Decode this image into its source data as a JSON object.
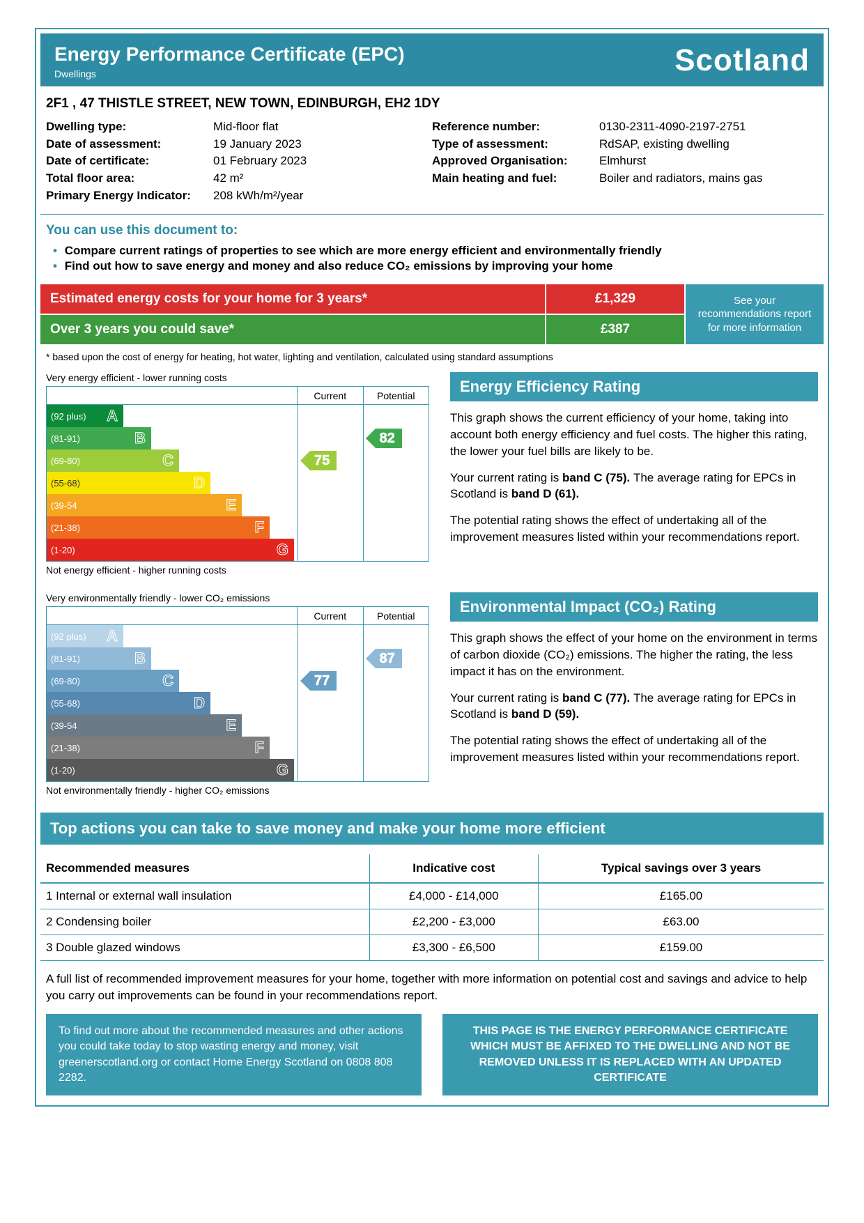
{
  "header": {
    "title": "Energy Performance Certificate (EPC)",
    "subtitle": "Dwellings",
    "region": "Scotland"
  },
  "address": "2F1 , 47 THISTLE STREET, NEW TOWN, EDINBURGH, EH2 1DY",
  "details_left": [
    {
      "label": "Dwelling type:",
      "value": "Mid-floor flat"
    },
    {
      "label": "Date of assessment:",
      "value": "19 January 2023"
    },
    {
      "label": "Date of certificate:",
      "value": "01 February 2023"
    },
    {
      "label": "Total floor area:",
      "value": "42 m²"
    },
    {
      "label": "Primary Energy Indicator:",
      "value": "208 kWh/m²/year"
    }
  ],
  "details_right": [
    {
      "label": "Reference number:",
      "value": "0130-2311-4090-2197-2751"
    },
    {
      "label": "Type of assessment:",
      "value": "RdSAP, existing dwelling"
    },
    {
      "label": "Approved Organisation:",
      "value": "Elmhurst"
    },
    {
      "label": "Main heating and fuel:",
      "value": "Boiler and radiators, mains gas"
    }
  ],
  "doc_use": {
    "title": "You can use this document to:",
    "items": [
      "Compare current ratings of properties to see which are more energy efficient and environmentally friendly",
      "Find out how to save energy and money and also reduce CO₂ emissions by improving your home"
    ]
  },
  "costs": {
    "row1_label": "Estimated energy costs for your home for 3 years*",
    "row1_value": "£1,329",
    "row2_label": "Over 3 years you could save*",
    "row2_value": "£387",
    "side": "See your recommendations report for more information",
    "footnote": "* based upon the cost of energy for heating, hot water, lighting and ventilation, calculated using standard assumptions"
  },
  "bands": {
    "labels": [
      "(92 plus)",
      "(81-91)",
      "(69-80)",
      "(55-68)",
      "(39-54",
      "(21-38)",
      "(1-20)"
    ],
    "letters": [
      "A",
      "B",
      "C",
      "D",
      "E",
      "F",
      "G"
    ],
    "widths": [
      110,
      150,
      190,
      235,
      280,
      320,
      355
    ],
    "eff_colors": [
      "#0b8a3a",
      "#3fa94f",
      "#9ccb3b",
      "#f7e500",
      "#f5a623",
      "#ef6c1f",
      "#e2261f"
    ],
    "eff_text_colors": [
      "#fff",
      "#fff",
      "#fff",
      "#333",
      "#fff",
      "#fff",
      "#fff"
    ],
    "env_colors": [
      "#b8d4e8",
      "#8fb9d6",
      "#6a9fc4",
      "#5788af",
      "#6b7a86",
      "#7d7d7d",
      "#595959"
    ]
  },
  "efficiency": {
    "title": "Energy Efficiency Rating",
    "caption_top": "Very energy efficient - lower running costs",
    "caption_bottom": "Not energy efficient - higher running costs",
    "col_current": "Current",
    "col_potential": "Potential",
    "current": {
      "value": "75",
      "band_index": 2,
      "color": "#9ccb3b"
    },
    "potential": {
      "value": "82",
      "band_index": 1,
      "color": "#3fa94f"
    },
    "p1": "This graph shows the current efficiency of your home, taking into account both energy efficiency and fuel costs. The higher this rating, the lower your fuel bills are likely to be.",
    "p2_a": "Your current rating is ",
    "p2_b": "band C (75). ",
    "p2_c": "The average rating for EPCs in Scotland is ",
    "p2_d": "band D (61).",
    "p3": "The potential rating shows the effect of undertaking all of the improvement measures listed within your recommendations report."
  },
  "environmental": {
    "title": "Environmental Impact (CO₂) Rating",
    "caption_top": "Very environmentally friendly - lower CO₂ emissions",
    "caption_bottom": "Not environmentally friendly - higher CO₂ emissions",
    "current": {
      "value": "77",
      "band_index": 2,
      "color": "#6a9fc4"
    },
    "potential": {
      "value": "87",
      "band_index": 1,
      "color": "#8fb9d6"
    },
    "p1": "This graph shows the effect of your home on the environment in terms of carbon dioxide (CO₂) emissions. The higher the rating, the less impact it has on the environment.",
    "p2_a": "Your current rating is ",
    "p2_b": "band C (77). ",
    "p2_c": "The average rating for EPCs in Scotland is ",
    "p2_d": "band D (59).",
    "p3": "The potential rating shows the effect of undertaking all of the improvement measures listed within your recommendations report."
  },
  "actions": {
    "title": "Top actions you can take to save money and make your home more efficient",
    "headers": [
      "Recommended measures",
      "Indicative cost",
      "Typical savings over 3 years"
    ],
    "rows": [
      [
        "1 Internal or external wall insulation",
        "£4,000 - £14,000",
        "£165.00"
      ],
      [
        "2 Condensing boiler",
        "£2,200 - £3,000",
        "£63.00"
      ],
      [
        "3 Double glazed windows",
        "£3,300 - £6,500",
        "£159.00"
      ]
    ],
    "after": "A full list of recommended improvement measures for your home, together with more information on potential cost and savings and advice to help you carry out improvements can be found in your recommendations report."
  },
  "bottom": {
    "left": "To find out more about the recommended measures and other actions you could take today to stop wasting energy and money, visit greenerscotland.org or contact Home Energy Scotland on 0808 808 2282.",
    "right": "THIS PAGE IS THE ENERGY PERFORMANCE CERTIFICATE WHICH MUST BE AFFIXED TO THE DWELLING AND NOT BE REMOVED UNLESS IT IS REPLACED WITH AN UPDATED CERTIFICATE"
  }
}
